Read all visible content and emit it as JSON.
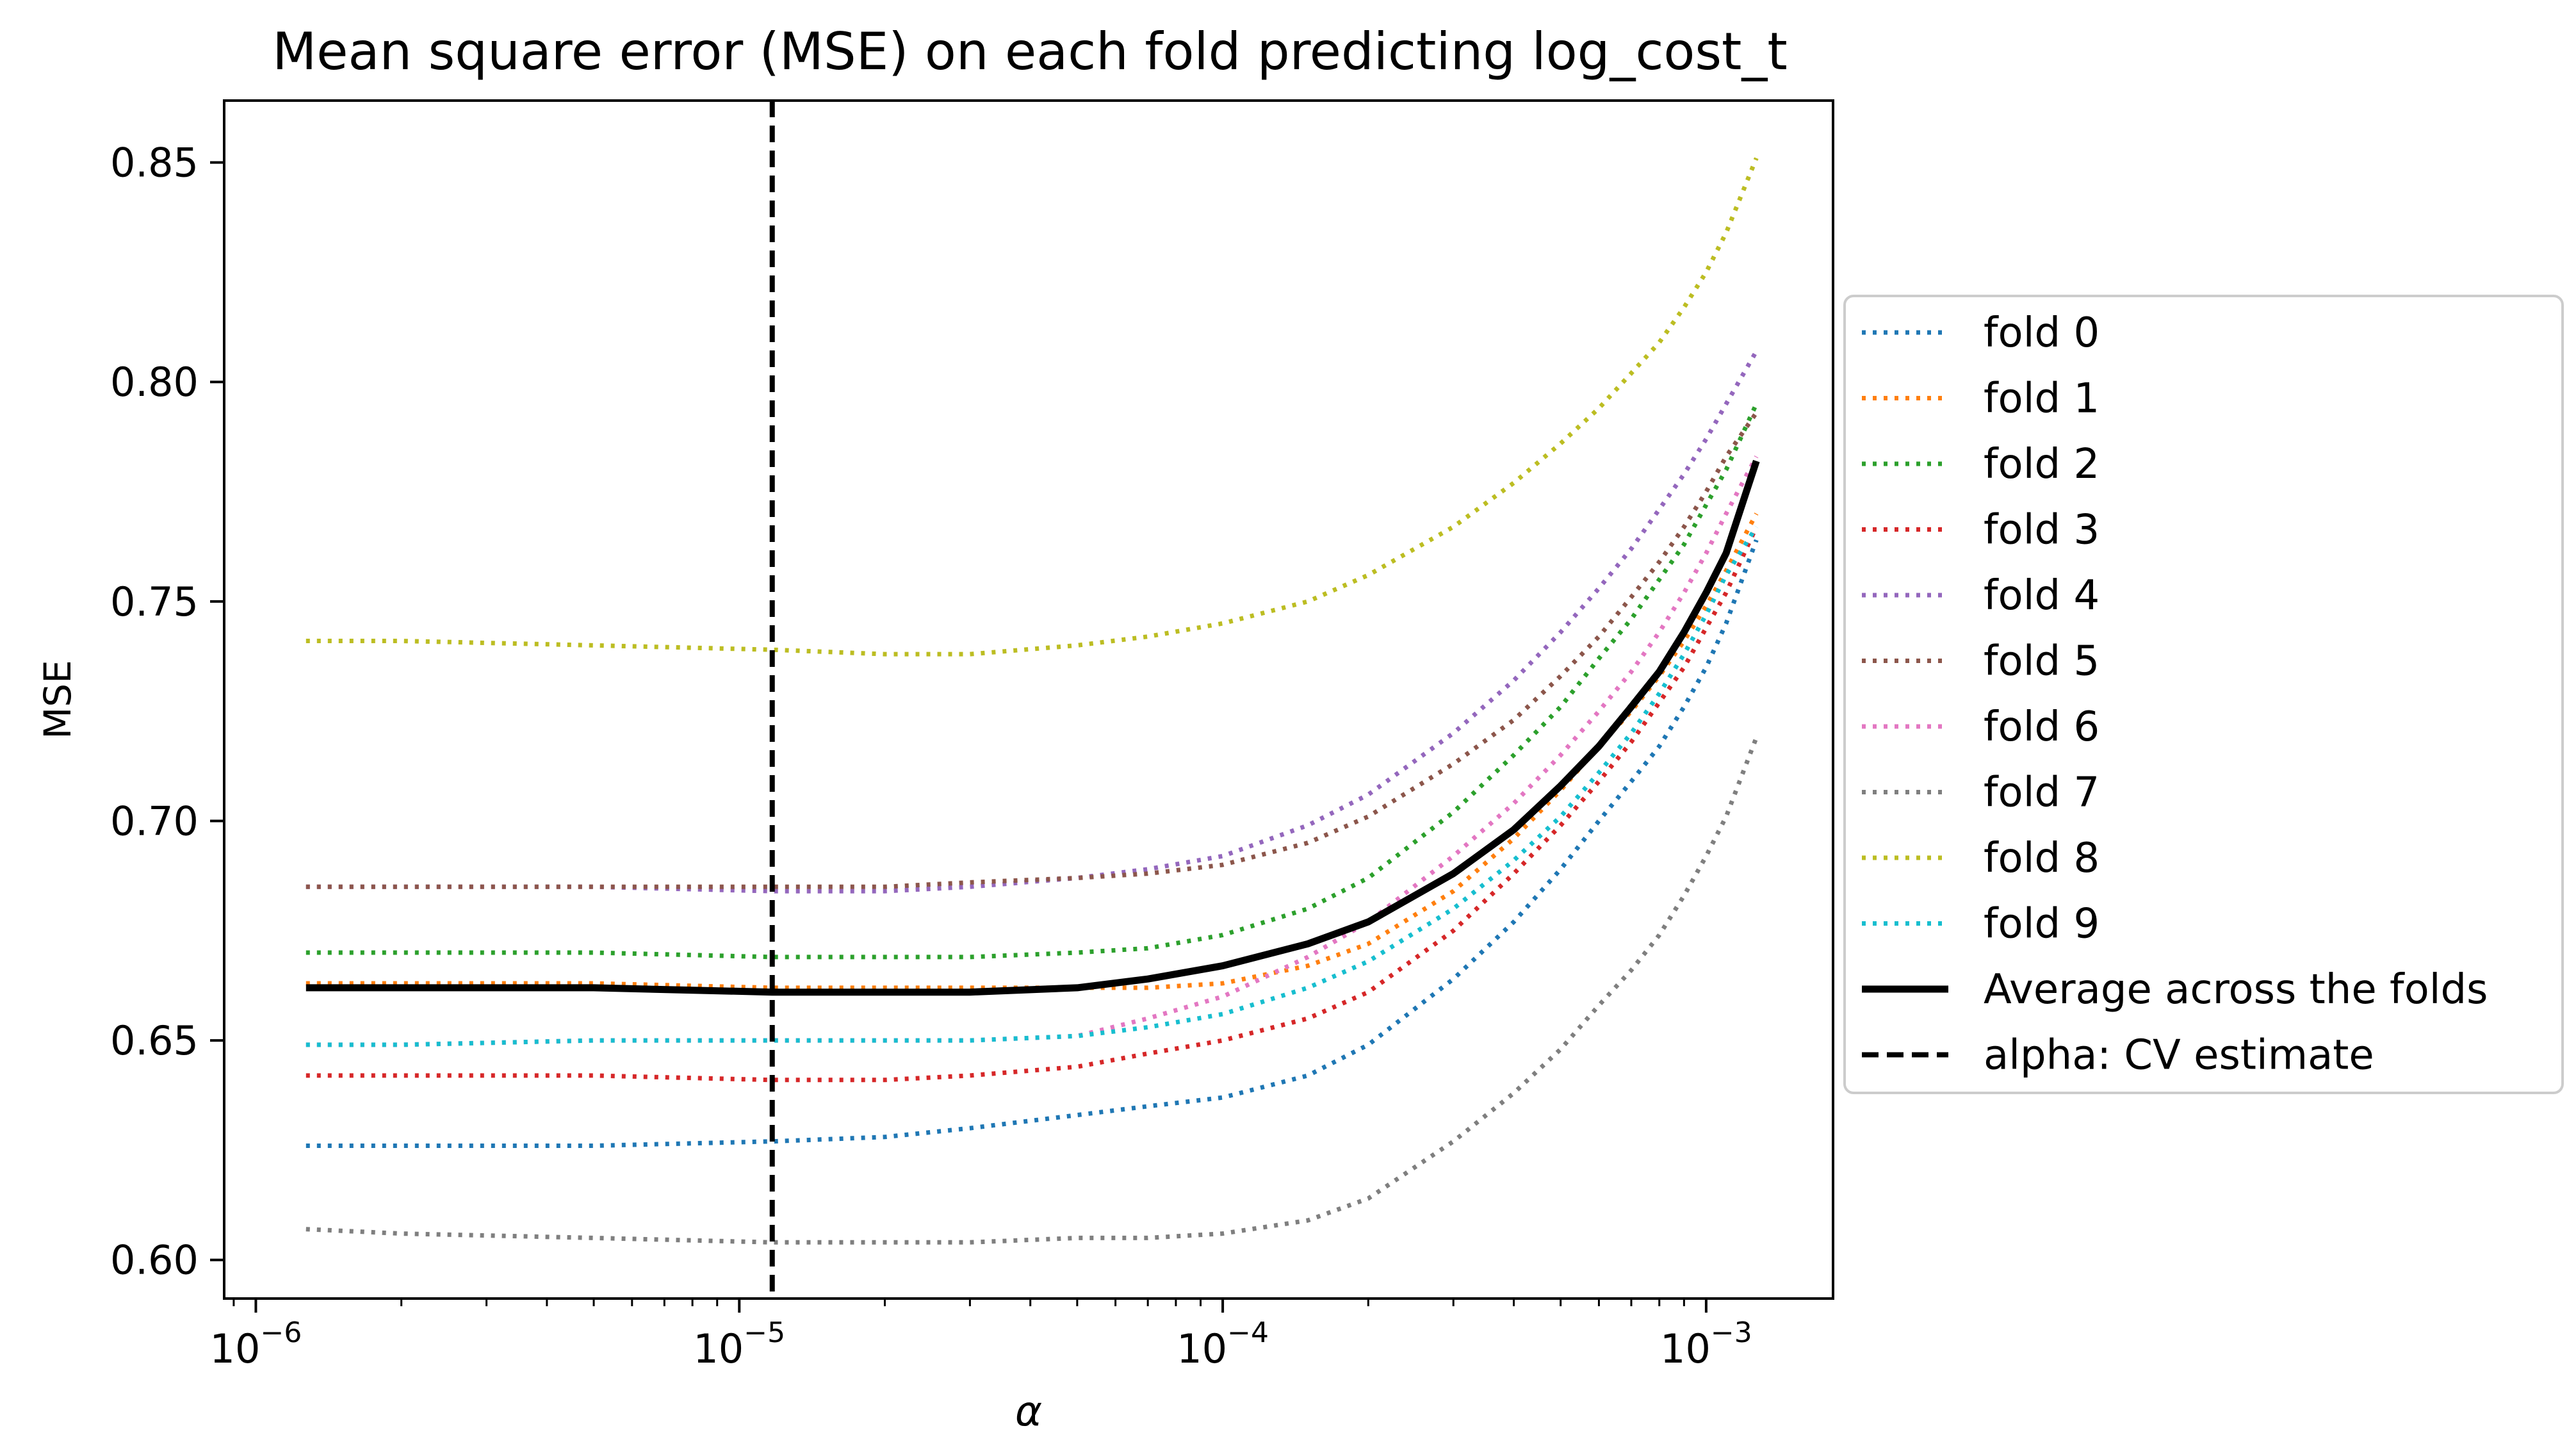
{
  "chart_data": {
    "type": "line",
    "title": "Mean square error (MSE) on each fold predicting log_cost_t",
    "xlabel": "α",
    "ylabel": "MSE",
    "xscale": "log",
    "xlim": [
      8.6e-07,
      0.00183
    ],
    "ylim": [
      0.5912,
      0.8641
    ],
    "xticks": [
      {
        "value": 1e-06,
        "base": "10",
        "exp": "−6"
      },
      {
        "value": 1e-05,
        "base": "10",
        "exp": "−5"
      },
      {
        "value": 0.0001,
        "base": "10",
        "exp": "−4"
      },
      {
        "value": 0.001,
        "base": "10",
        "exp": "−3"
      }
    ],
    "yticks": [
      0.6,
      0.65,
      0.7,
      0.75,
      0.8,
      0.85
    ],
    "ytick_labels": [
      "0.60",
      "0.65",
      "0.70",
      "0.75",
      "0.80",
      "0.85"
    ],
    "grid": false,
    "legend_position": "right, outside",
    "x": [
      1.27e-06,
      2e-06,
      5e-06,
      1.17e-05,
      2e-05,
      3e-05,
      5e-05,
      7e-05,
      0.0001,
      0.00015,
      0.0002,
      0.0003,
      0.0004,
      0.0005,
      0.0006,
      0.0007,
      0.0008,
      0.0009,
      0.001,
      0.0011,
      0.00127
    ],
    "series": [
      {
        "name": "fold 0",
        "color": "#1f77b4",
        "style": "dotted",
        "values": [
          0.626,
          0.626,
          0.626,
          0.627,
          0.628,
          0.63,
          0.633,
          0.635,
          0.637,
          0.642,
          0.649,
          0.664,
          0.677,
          0.689,
          0.7,
          0.709,
          0.717,
          0.726,
          0.735,
          0.745,
          0.764
        ]
      },
      {
        "name": "fold 1",
        "color": "#ff7f0e",
        "style": "dotted",
        "values": [
          0.663,
          0.663,
          0.663,
          0.662,
          0.662,
          0.662,
          0.662,
          0.662,
          0.663,
          0.667,
          0.672,
          0.684,
          0.696,
          0.707,
          0.717,
          0.725,
          0.733,
          0.741,
          0.749,
          0.757,
          0.77
        ]
      },
      {
        "name": "fold 2",
        "color": "#2ca02c",
        "style": "dotted",
        "values": [
          0.67,
          0.67,
          0.67,
          0.669,
          0.669,
          0.669,
          0.67,
          0.671,
          0.674,
          0.68,
          0.687,
          0.702,
          0.715,
          0.726,
          0.737,
          0.746,
          0.755,
          0.763,
          0.772,
          0.78,
          0.795
        ]
      },
      {
        "name": "fold 3",
        "color": "#d62728",
        "style": "dotted",
        "values": [
          0.642,
          0.642,
          0.642,
          0.641,
          0.641,
          0.642,
          0.644,
          0.647,
          0.65,
          0.655,
          0.661,
          0.675,
          0.688,
          0.699,
          0.709,
          0.718,
          0.727,
          0.735,
          0.744,
          0.752,
          0.767
        ]
      },
      {
        "name": "fold 4",
        "color": "#9467bd",
        "style": "dotted",
        "values": [
          0.685,
          0.685,
          0.685,
          0.684,
          0.684,
          0.685,
          0.687,
          0.689,
          0.692,
          0.699,
          0.706,
          0.72,
          0.732,
          0.743,
          0.753,
          0.762,
          0.771,
          0.779,
          0.787,
          0.795,
          0.807
        ]
      },
      {
        "name": "fold 5",
        "color": "#8c564b",
        "style": "dotted",
        "values": [
          0.685,
          0.685,
          0.685,
          0.685,
          0.685,
          0.686,
          0.687,
          0.688,
          0.69,
          0.695,
          0.701,
          0.713,
          0.723,
          0.733,
          0.742,
          0.751,
          0.759,
          0.767,
          0.775,
          0.783,
          0.793
        ]
      },
      {
        "name": "fold 6",
        "color": "#e377c2",
        "style": "dotted",
        "values": [
          0.649,
          0.649,
          0.65,
          0.65,
          0.65,
          0.65,
          0.651,
          0.655,
          0.66,
          0.669,
          0.677,
          0.692,
          0.704,
          0.715,
          0.725,
          0.734,
          0.743,
          0.752,
          0.761,
          0.77,
          0.783
        ]
      },
      {
        "name": "fold 7",
        "color": "#7f7f7f",
        "style": "dotted",
        "values": [
          0.607,
          0.606,
          0.605,
          0.604,
          0.604,
          0.604,
          0.605,
          0.605,
          0.606,
          0.609,
          0.614,
          0.627,
          0.638,
          0.648,
          0.658,
          0.666,
          0.674,
          0.683,
          0.692,
          0.701,
          0.719
        ]
      },
      {
        "name": "fold 8",
        "color": "#bcbd22",
        "style": "dotted",
        "values": [
          0.741,
          0.741,
          0.74,
          0.739,
          0.738,
          0.738,
          0.74,
          0.742,
          0.745,
          0.75,
          0.756,
          0.767,
          0.777,
          0.786,
          0.794,
          0.802,
          0.809,
          0.817,
          0.825,
          0.834,
          0.851
        ]
      },
      {
        "name": "fold 9",
        "color": "#17becf",
        "style": "dotted",
        "values": [
          0.649,
          0.649,
          0.65,
          0.65,
          0.65,
          0.65,
          0.651,
          0.653,
          0.656,
          0.662,
          0.668,
          0.68,
          0.691,
          0.701,
          0.711,
          0.72,
          0.729,
          0.738,
          0.747,
          0.756,
          0.767
        ]
      },
      {
        "name": "Average across the folds",
        "color": "#000000",
        "style": "solid",
        "values": [
          0.662,
          0.662,
          0.662,
          0.661,
          0.661,
          0.661,
          0.662,
          0.664,
          0.667,
          0.672,
          0.677,
          0.688,
          0.698,
          0.708,
          0.717,
          0.726,
          0.734,
          0.743,
          0.752,
          0.761,
          0.782
        ]
      }
    ],
    "vline": {
      "name": "alpha: CV estimate",
      "x": 1.17e-05,
      "color": "#000000",
      "style": "dashed"
    },
    "legend": [
      "fold 0",
      "fold 1",
      "fold 2",
      "fold 3",
      "fold 4",
      "fold 5",
      "fold 6",
      "fold 7",
      "fold 8",
      "fold 9",
      "Average across the folds",
      "alpha: CV estimate"
    ]
  }
}
